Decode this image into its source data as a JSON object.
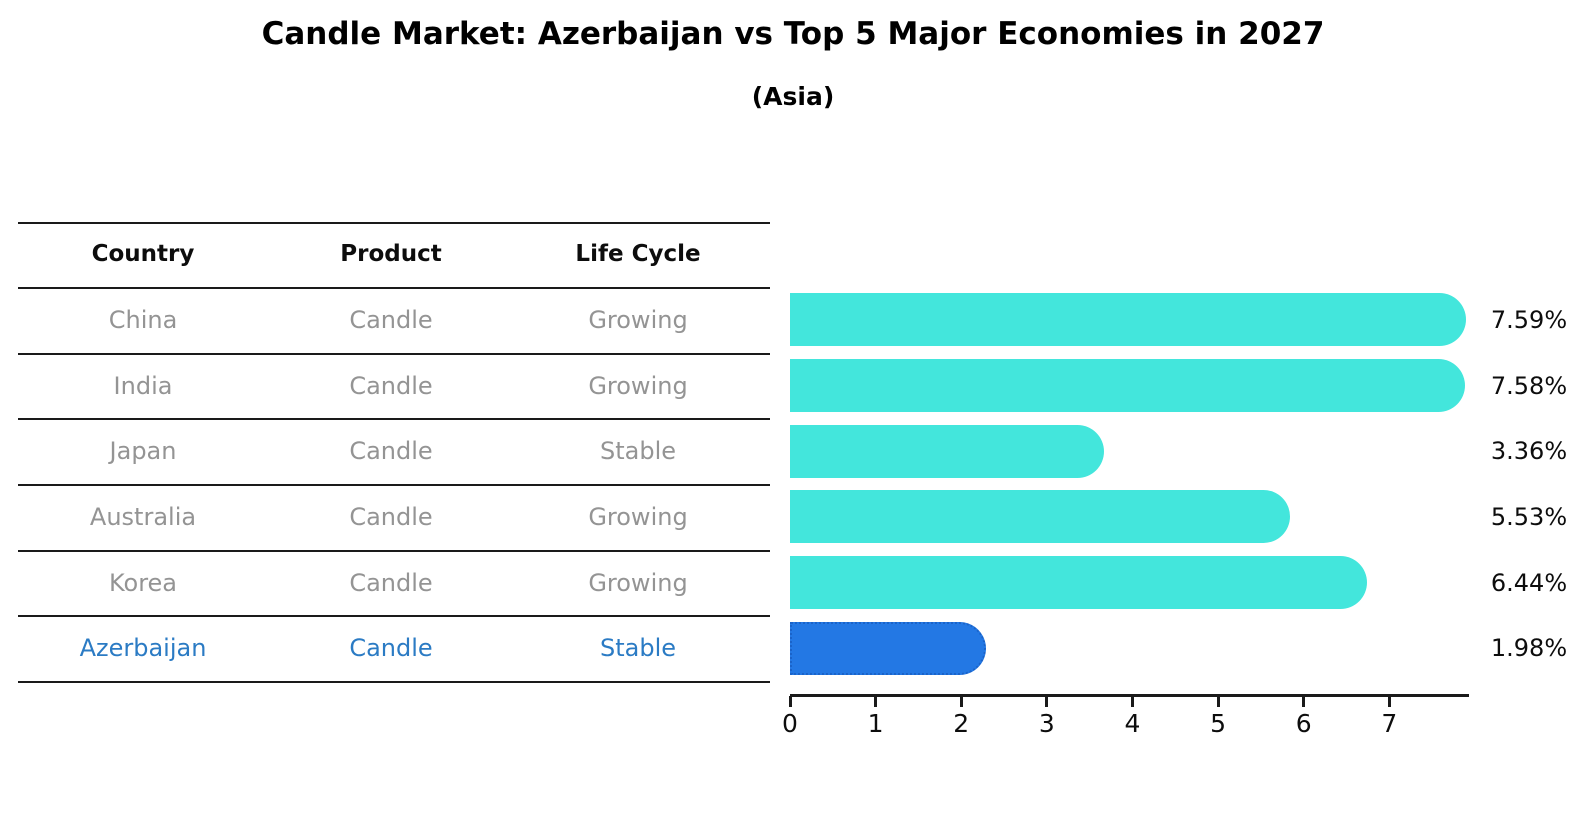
{
  "title": "Candle Market: Azerbaijan vs Top 5 Major Economies in 2027",
  "subtitle": "(Asia)",
  "table": {
    "headers": [
      "Country",
      "Product",
      "Life Cycle"
    ],
    "rows": [
      {
        "country": "China",
        "product": "Candle",
        "life_cycle": "Growing"
      },
      {
        "country": "India",
        "product": "Candle",
        "life_cycle": "Growing"
      },
      {
        "country": "Japan",
        "product": "Candle",
        "life_cycle": "Stable"
      },
      {
        "country": "Australia",
        "product": "Candle",
        "life_cycle": "Growing"
      },
      {
        "country": "Korea",
        "product": "Candle",
        "life_cycle": "Growing"
      },
      {
        "country": "Azerbaijan",
        "product": "Candle",
        "life_cycle": "Stable"
      }
    ],
    "highlight_row": 5
  },
  "chart_data": {
    "type": "bar",
    "orientation": "horizontal",
    "title": "Candle Market: Azerbaijan vs Top 5 Major Economies in 2027",
    "subtitle": "(Asia)",
    "categories": [
      "China",
      "India",
      "Japan",
      "Australia",
      "Korea",
      "Azerbaijan"
    ],
    "values": [
      7.59,
      7.58,
      3.36,
      5.53,
      6.44,
      1.98
    ],
    "bar_labels": [
      "7.59%",
      "7.58%",
      "3.36%",
      "5.53%",
      "6.44%",
      "1.98%"
    ],
    "xticks": [
      "0",
      "1",
      "2",
      "3",
      "4",
      "5",
      "6",
      "7"
    ],
    "xlim": [
      0,
      7.93
    ],
    "grid": false,
    "legend": false,
    "highlight_index": 5,
    "colors": {
      "bar": "#43e6dc",
      "highlight_bar": "#2378e4",
      "highlight_border": "#1a63c9",
      "row_text": "#949494",
      "highlight_text": "#2b7bc4",
      "axis": "#1a1a1a"
    }
  }
}
